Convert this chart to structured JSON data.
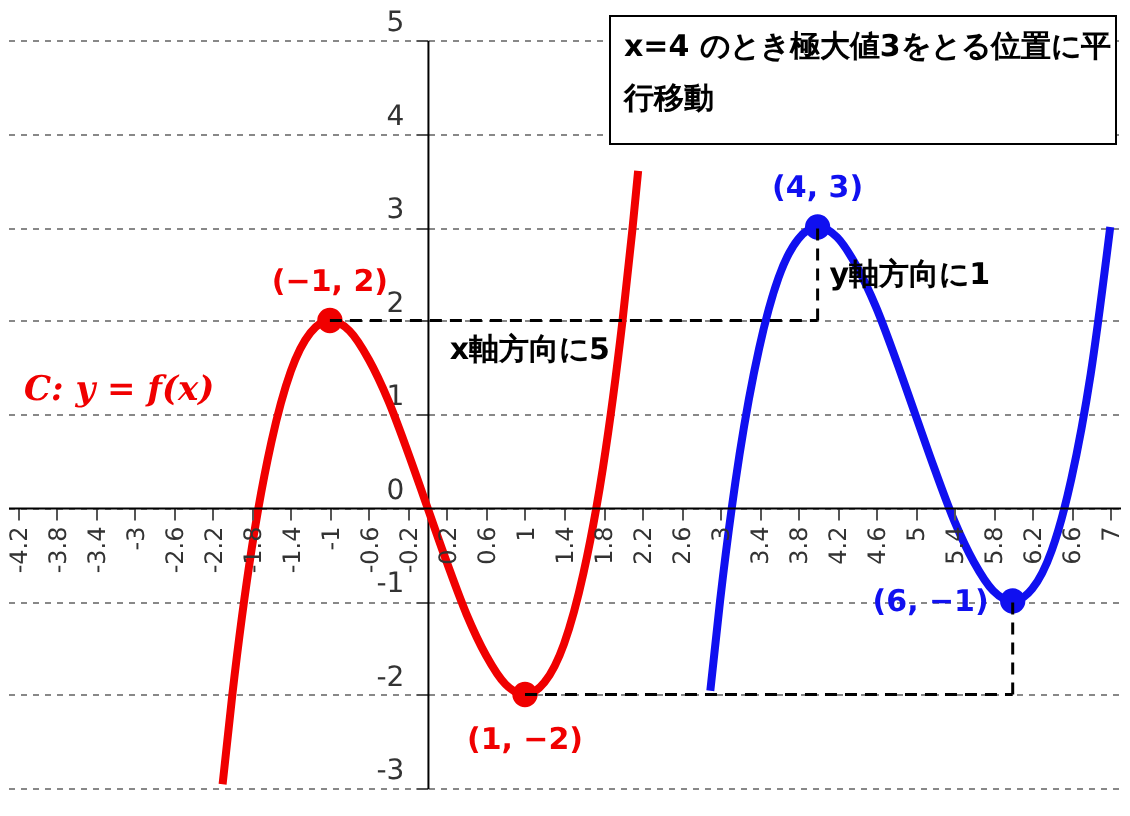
{
  "chart_data": {
    "type": "line",
    "annotations": [
      "x=4 のとき極大値3をとる位置に平行移動",
      "C: y = f(x)",
      {
        "text": "(−1, 2)",
        "x": -1,
        "y": 2
      },
      {
        "text": "(1, −2)",
        "x": 1,
        "y": -2
      },
      {
        "text": "(4, 3)",
        "x": 4,
        "y": 3
      },
      {
        "text": "(6, −1)",
        "x": 6,
        "y": -1
      },
      {
        "text": "x軸方向に5",
        "x": 1.5,
        "y": 2
      },
      {
        "text": "y軸方向に1",
        "x": 4,
        "y": 2.5
      }
    ],
    "xlim": [
      -4.3,
      7.1
    ],
    "ylim": [
      -3,
      5
    ],
    "xticks": [
      -4.2,
      -3.8,
      -3.4,
      -3,
      -2.6,
      -2.2,
      -1.8,
      -1.4,
      -1,
      -0.6,
      -0.2,
      0.2,
      0.6,
      1,
      1.4,
      1.8,
      2.2,
      2.6,
      3,
      3.4,
      3.8,
      4.2,
      4.6,
      5,
      5.4,
      5.8,
      6.2,
      6.6,
      7
    ],
    "yticks": [
      -3,
      -2,
      -1,
      0,
      1,
      2,
      3,
      4,
      5
    ],
    "grid": "y",
    "series": [
      {
        "color": "#f00000",
        "line_style": "solid",
        "marker": "none",
        "x": [
          -2.1,
          -2.0,
          -1.8,
          -1.6,
          -1.4,
          -1.2,
          -1.0,
          -0.8,
          -0.6,
          -0.4,
          -0.2,
          0,
          0.2,
          0.4,
          0.6,
          0.8,
          1.0,
          1.2,
          1.4,
          1.6,
          1.8,
          2.0,
          2.1,
          2.16
        ],
        "values": [
          -2.96,
          -2,
          -0.43,
          0.7,
          1.46,
          1.87,
          2,
          1.89,
          1.58,
          1.14,
          0.59,
          0,
          -0.59,
          -1.14,
          -1.58,
          -1.89,
          -2,
          -1.87,
          -1.46,
          -0.7,
          0.43,
          2,
          2.96,
          3.6
        ]
      },
      {
        "color": "#1010f0",
        "line_style": "solid",
        "marker": "none",
        "x": [
          2.9,
          3.0,
          3.2,
          3.4,
          3.6,
          3.8,
          4.0,
          4.2,
          4.4,
          4.6,
          4.8,
          5.0,
          5.2,
          5.4,
          5.6,
          5.8,
          6.0,
          6.2,
          6.4,
          6.6,
          6.8,
          7.0
        ],
        "values": [
          -1.96,
          -1,
          0.57,
          1.7,
          2.46,
          2.87,
          3,
          2.89,
          2.58,
          2.14,
          1.59,
          1,
          0.41,
          -0.14,
          -0.58,
          -0.89,
          -1,
          -0.87,
          -0.46,
          0.3,
          1.43,
          3
        ]
      },
      {
        "type": "scatter",
        "color": "#f00000",
        "marker": "circle",
        "x": [
          -1,
          1
        ],
        "values": [
          2,
          -2
        ]
      },
      {
        "type": "scatter",
        "color": "#1010f0",
        "marker": "circle",
        "x": [
          4,
          6
        ],
        "values": [
          3,
          -1
        ]
      },
      {
        "type": "line",
        "color": "#000000",
        "line_style": "dashed",
        "marker": "none",
        "x": [
          -1,
          4
        ],
        "values": [
          2,
          2
        ]
      },
      {
        "type": "line",
        "color": "#000000",
        "line_style": "dashed",
        "marker": "none",
        "x": [
          4,
          4
        ],
        "values": [
          2,
          3
        ]
      },
      {
        "type": "line",
        "color": "#000000",
        "line_style": "dashed",
        "marker": "none",
        "x": [
          1,
          6
        ],
        "values": [
          -2,
          -2
        ]
      },
      {
        "type": "line",
        "color": "#000000",
        "line_style": "dashed",
        "marker": "none",
        "x": [
          6,
          6
        ],
        "values": [
          -2,
          -1
        ]
      }
    ]
  }
}
